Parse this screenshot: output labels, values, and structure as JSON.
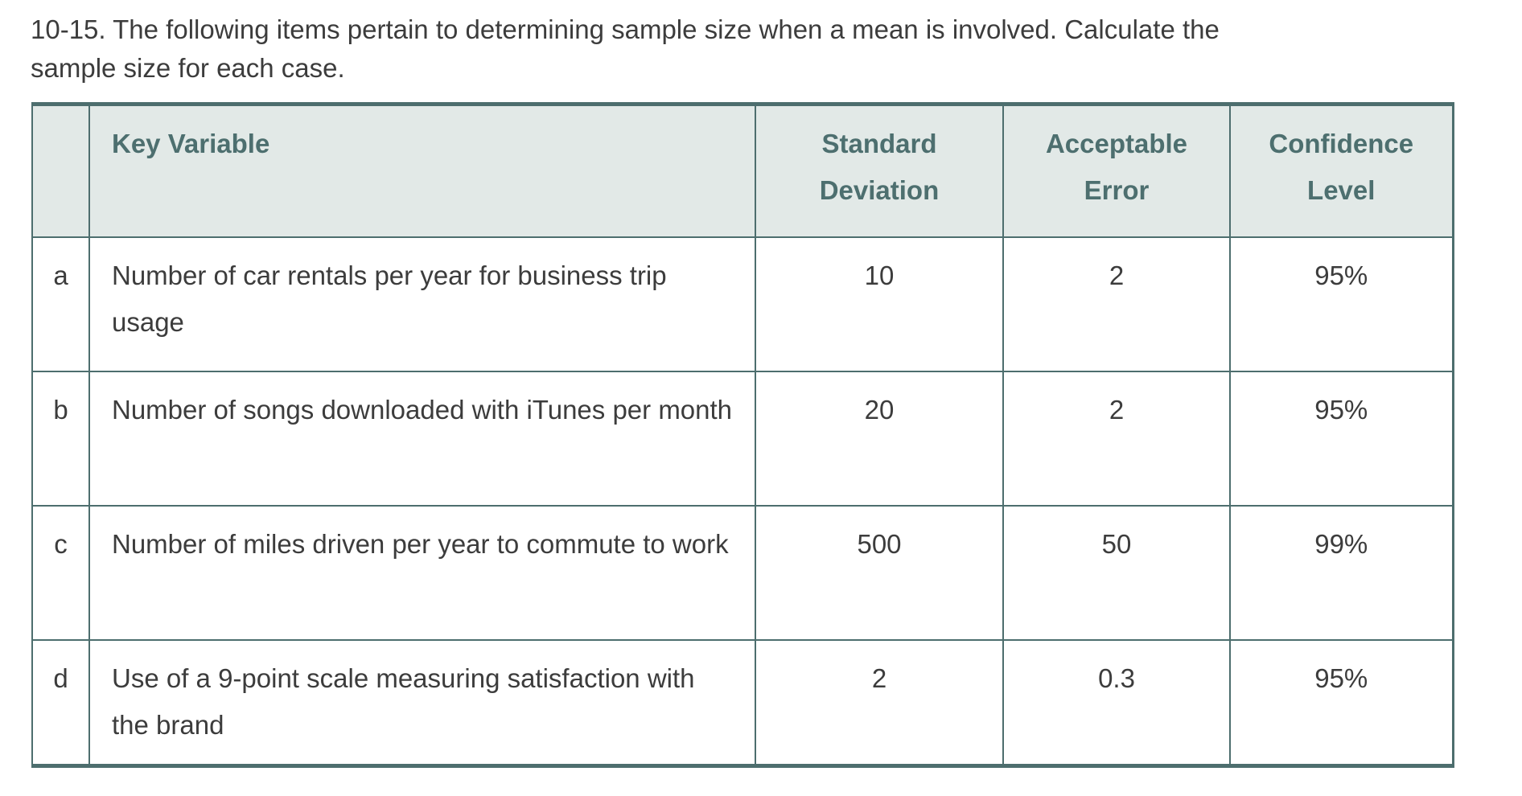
{
  "problem": {
    "statement_lines": [
      "10-15. The following items pertain to determining sample size when a mean is involved. Calculate the",
      "sample size for each case."
    ]
  },
  "table": {
    "headers": {
      "corner": "",
      "key_variable": "Key Variable",
      "standard_deviation": "Standard Deviation",
      "acceptable_error": "Acceptable Error",
      "confidence_level": "Confidence Level"
    },
    "rows": [
      {
        "label": "a",
        "key_variable": "Number of car rentals per year for business trip usage",
        "standard_deviation": "10",
        "acceptable_error": "2",
        "confidence_level": "95%"
      },
      {
        "label": "b",
        "key_variable": "Number of songs downloaded with iTunes per month",
        "standard_deviation": "20",
        "acceptable_error": "2",
        "confidence_level": "95%"
      },
      {
        "label": "c",
        "key_variable": "Number of miles driven per year to commute to work",
        "standard_deviation": "500",
        "acceptable_error": "50",
        "confidence_level": "99%"
      },
      {
        "label": "d",
        "key_variable": "Use of a 9-point scale measuring satisfaction with the brand",
        "standard_deviation": "2",
        "acceptable_error": "0.3",
        "confidence_level": "95%"
      }
    ]
  },
  "colors": {
    "border": "#4d6e6e",
    "header_background": "#e2e9e7",
    "header_text": "#4d6f6f",
    "body_text": "#3c3c3c"
  }
}
